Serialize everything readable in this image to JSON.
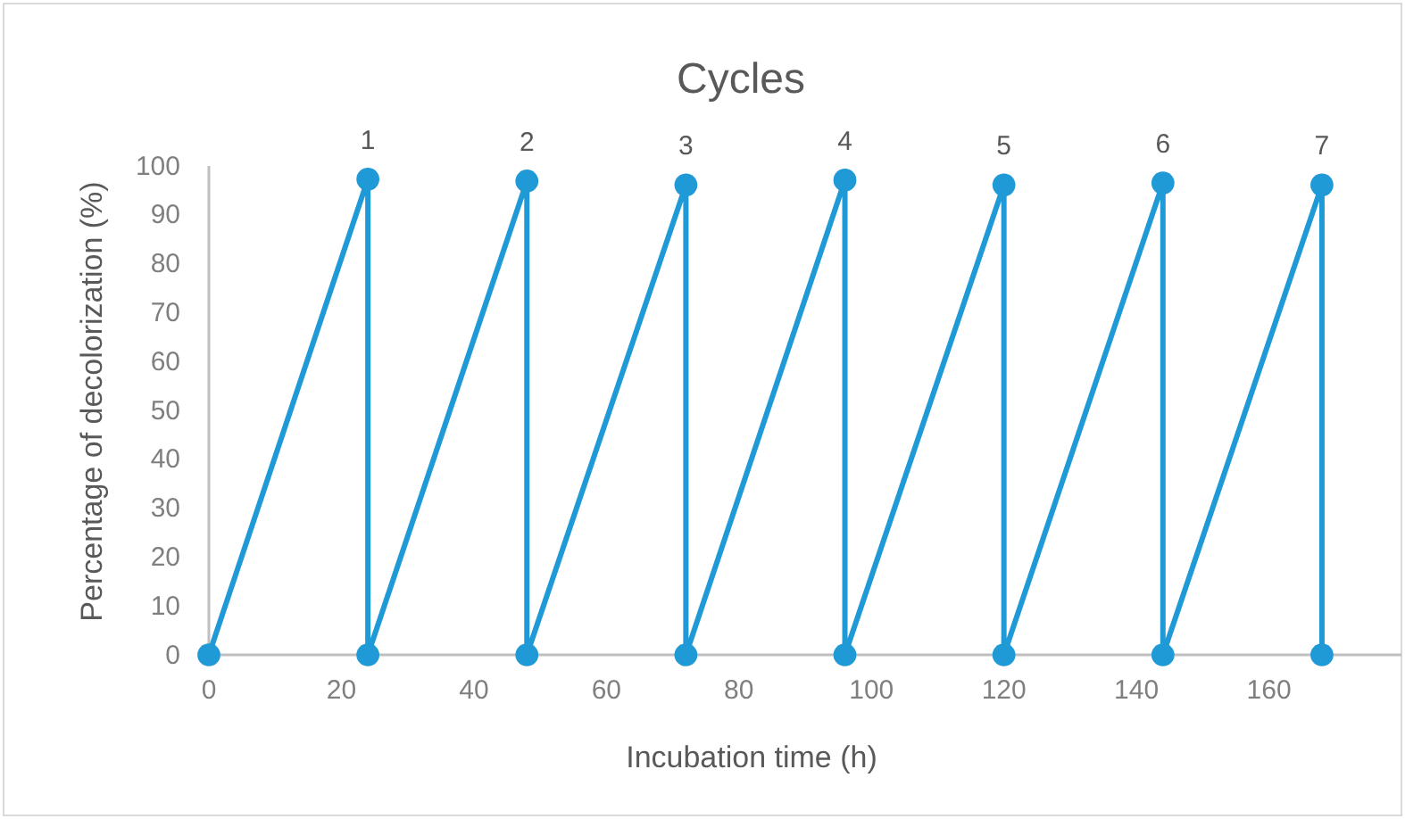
{
  "chart_data": {
    "type": "line",
    "title": "Cycles",
    "xlabel": "Incubation time (h)",
    "ylabel": "Percentage of decolorization (%)",
    "series": [
      {
        "color": "#1f9ad6",
        "x": [
          0,
          24,
          24,
          48,
          48,
          72,
          72,
          96,
          96,
          120,
          120,
          144,
          144,
          168,
          168
        ],
        "values": [
          0,
          97.3,
          0,
          96.9,
          0,
          96.1,
          0,
          97.1,
          0,
          96.1,
          0,
          96.5,
          0,
          96.1,
          0
        ]
      }
    ],
    "xlim": [
      0,
      180
    ],
    "xticks": [
      0,
      20,
      40,
      60,
      80,
      100,
      120,
      140,
      160
    ],
    "ylim": [
      0,
      100
    ],
    "yticks": [
      0,
      10,
      20,
      30,
      40,
      50,
      60,
      70,
      80,
      90,
      100
    ],
    "annotations": [
      {
        "text": "1",
        "x": 24,
        "y": 97.3
      },
      {
        "text": "2",
        "x": 48,
        "y": 96.9
      },
      {
        "text": "3",
        "x": 72,
        "y": 96.1
      },
      {
        "text": "4",
        "x": 96,
        "y": 97.1
      },
      {
        "text": "5",
        "x": 120,
        "y": 96.1
      },
      {
        "text": "6",
        "x": 144,
        "y": 96.5
      },
      {
        "text": "7",
        "x": 168,
        "y": 96.1
      }
    ],
    "marker": "circle",
    "line_style": "solid",
    "grid": false
  }
}
